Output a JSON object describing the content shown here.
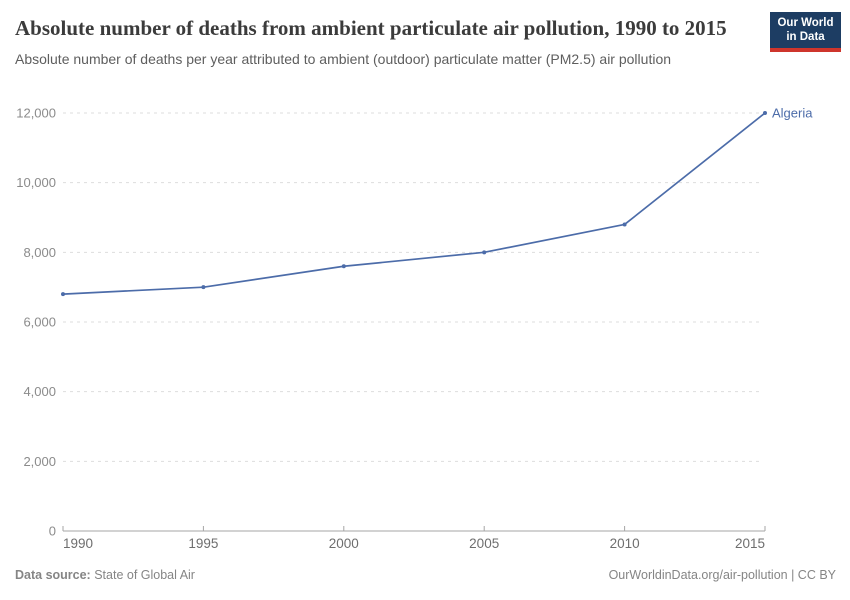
{
  "header": {
    "title": "Absolute number of deaths from ambient particulate air pollution, 1990 to 2015",
    "subtitle": "Absolute number of deaths per year attributed to ambient (outdoor) particulate matter (PM2.5) air pollution",
    "logo": {
      "line1": "Our World",
      "line2": "in Data"
    }
  },
  "chart_data": {
    "type": "line",
    "title": "Absolute number of deaths from ambient particulate air pollution, 1990 to 2015",
    "x": [
      1990,
      1995,
      2000,
      2005,
      2010,
      2015
    ],
    "series": [
      {
        "name": "Algeria",
        "color": "#4C6CA9",
        "values": [
          6800,
          7000,
          7600,
          8000,
          8800,
          12000
        ]
      }
    ],
    "xlabel": "",
    "ylabel": "",
    "ylim": [
      0,
      12000
    ],
    "yticks": [
      0,
      2000,
      4000,
      6000,
      8000,
      10000,
      12000
    ],
    "grid": "horizontal dashed",
    "legend": "end-of-line label"
  },
  "footer": {
    "source_label": "Data source:",
    "source_value": "State of Global Air",
    "credit": "OurWorldinData.org/air-pollution | CC BY"
  },
  "colors": {
    "line": "#4C6CA9",
    "logo_bg": "#1D3D63",
    "logo_stripe": "#CE352C",
    "grid": "#DDDDDD",
    "axis": "#A5A5A5"
  }
}
